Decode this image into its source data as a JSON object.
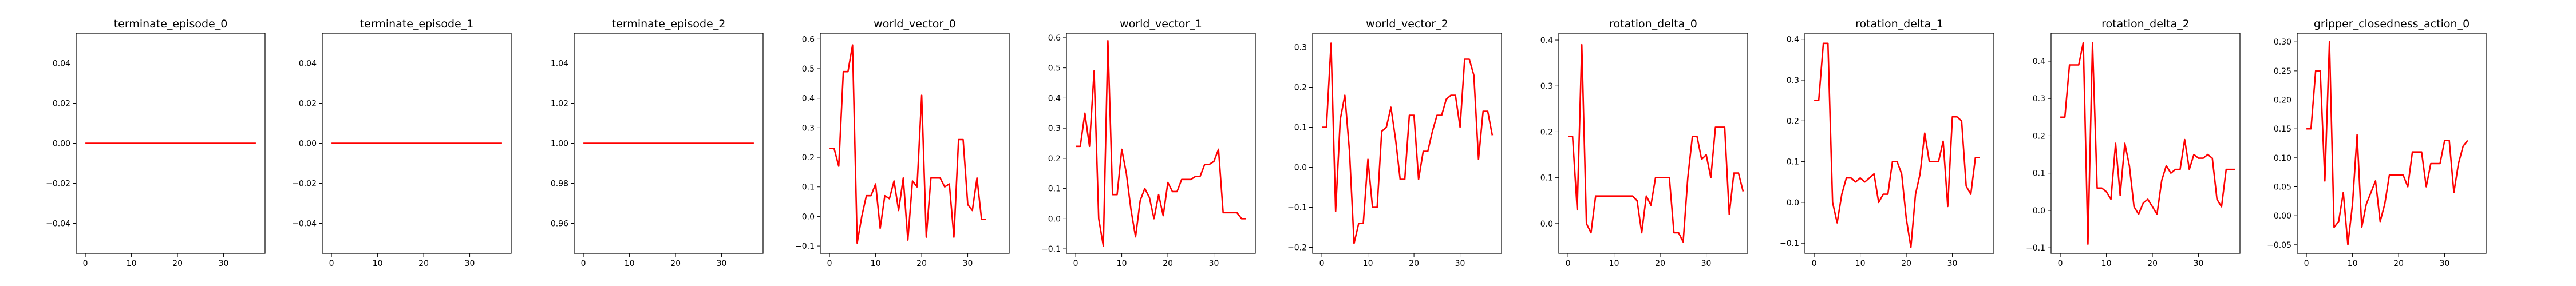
{
  "chart_data": [
    {
      "type": "line",
      "title": "terminate_episode_0",
      "xlim": [
        -2,
        39
      ],
      "ylim": [
        -0.055,
        0.055
      ],
      "xticks": [
        0,
        10,
        20,
        30
      ],
      "yticks": [
        -0.04,
        -0.02,
        0.0,
        0.02,
        0.04
      ],
      "ytick_labels": [
        "−0.04",
        "−0.02",
        "0.00",
        "0.02",
        "0.04"
      ],
      "color": "#ff0000",
      "y": [
        0,
        0,
        0,
        0,
        0,
        0,
        0,
        0,
        0,
        0,
        0,
        0,
        0,
        0,
        0,
        0,
        0,
        0,
        0,
        0,
        0,
        0,
        0,
        0,
        0,
        0,
        0,
        0,
        0,
        0,
        0,
        0,
        0,
        0,
        0,
        0,
        0,
        0
      ]
    },
    {
      "type": "line",
      "title": "terminate_episode_1",
      "xlim": [
        -2,
        39
      ],
      "ylim": [
        -0.055,
        0.055
      ],
      "xticks": [
        0,
        10,
        20,
        30
      ],
      "yticks": [
        -0.04,
        -0.02,
        0.0,
        0.02,
        0.04
      ],
      "ytick_labels": [
        "−0.04",
        "−0.02",
        "0.00",
        "0.02",
        "0.04"
      ],
      "color": "#ff0000",
      "y": [
        0,
        0,
        0,
        0,
        0,
        0,
        0,
        0,
        0,
        0,
        0,
        0,
        0,
        0,
        0,
        0,
        0,
        0,
        0,
        0,
        0,
        0,
        0,
        0,
        0,
        0,
        0,
        0,
        0,
        0,
        0,
        0,
        0,
        0,
        0,
        0,
        0,
        0
      ]
    },
    {
      "type": "line",
      "title": "terminate_episode_2",
      "xlim": [
        -2,
        39
      ],
      "ylim": [
        0.945,
        1.055
      ],
      "xticks": [
        0,
        10,
        20,
        30
      ],
      "yticks": [
        0.96,
        0.98,
        1.0,
        1.02,
        1.04
      ],
      "ytick_labels": [
        "0.96",
        "0.98",
        "1.00",
        "1.02",
        "1.04"
      ],
      "color": "#ff0000",
      "y": [
        1,
        1,
        1,
        1,
        1,
        1,
        1,
        1,
        1,
        1,
        1,
        1,
        1,
        1,
        1,
        1,
        1,
        1,
        1,
        1,
        1,
        1,
        1,
        1,
        1,
        1,
        1,
        1,
        1,
        1,
        1,
        1,
        1,
        1,
        1,
        1,
        1,
        1
      ]
    },
    {
      "type": "line",
      "title": "world_vector_0",
      "xlim": [
        -2,
        39
      ],
      "ylim": [
        -0.125,
        0.62
      ],
      "xticks": [
        0,
        10,
        20,
        30
      ],
      "yticks": [
        -0.1,
        0.0,
        0.1,
        0.2,
        0.3,
        0.4,
        0.5,
        0.6
      ],
      "ytick_labels": [
        "−0.1",
        "0.0",
        "0.1",
        "0.2",
        "0.3",
        "0.4",
        "0.5",
        "0.6"
      ],
      "color": "#ff0000",
      "y": [
        0.23,
        0.23,
        0.17,
        0.49,
        0.49,
        0.58,
        -0.09,
        0.0,
        0.07,
        0.07,
        0.11,
        -0.04,
        0.07,
        0.06,
        0.12,
        0.02,
        0.13,
        -0.08,
        0.12,
        0.1,
        0.41,
        -0.07,
        0.13,
        0.13,
        0.13,
        0.1,
        0.11,
        -0.07,
        0.26,
        0.26,
        0.04,
        0.02,
        0.13,
        -0.01,
        -0.01
      ]
    },
    {
      "type": "line",
      "title": "world_vector_1",
      "xlim": [
        -2,
        39
      ],
      "ylim": [
        -0.115,
        0.615
      ],
      "xticks": [
        0,
        10,
        20,
        30
      ],
      "yticks": [
        -0.1,
        0.0,
        0.1,
        0.2,
        0.3,
        0.4,
        0.5,
        0.6
      ],
      "ytick_labels": [
        "−0.1",
        "0.0",
        "0.1",
        "0.2",
        "0.3",
        "0.4",
        "0.5",
        "0.6"
      ],
      "color": "#ff0000",
      "y": [
        0.24,
        0.24,
        0.35,
        0.24,
        0.49,
        0.0,
        -0.09,
        0.59,
        0.08,
        0.08,
        0.23,
        0.15,
        0.03,
        -0.06,
        0.06,
        0.1,
        0.07,
        0.0,
        0.08,
        0.01,
        0.12,
        0.09,
        0.09,
        0.13,
        0.13,
        0.13,
        0.14,
        0.14,
        0.18,
        0.18,
        0.19,
        0.23,
        0.02,
        0.02,
        0.02,
        0.02,
        0.0,
        0.0
      ]
    },
    {
      "type": "line",
      "title": "world_vector_2",
      "xlim": [
        -2,
        39
      ],
      "ylim": [
        -0.215,
        0.335
      ],
      "xticks": [
        0,
        10,
        20,
        30
      ],
      "yticks": [
        -0.2,
        -0.1,
        0.0,
        0.1,
        0.2,
        0.3
      ],
      "ytick_labels": [
        "−0.2",
        "−0.1",
        "0.0",
        "0.1",
        "0.2",
        "0.3"
      ],
      "color": "#ff0000",
      "y": [
        0.1,
        0.1,
        0.31,
        -0.11,
        0.12,
        0.18,
        0.04,
        -0.19,
        -0.14,
        -0.14,
        0.02,
        -0.1,
        -0.1,
        0.09,
        0.1,
        0.15,
        0.07,
        -0.03,
        -0.03,
        0.13,
        0.13,
        -0.03,
        0.04,
        0.04,
        0.09,
        0.13,
        0.13,
        0.17,
        0.18,
        0.18,
        0.1,
        0.27,
        0.27,
        0.23,
        0.02,
        0.14,
        0.14,
        0.08
      ]
    },
    {
      "type": "line",
      "title": "rotation_delta_0",
      "xlim": [
        -2,
        39
      ],
      "ylim": [
        -0.065,
        0.415
      ],
      "xticks": [
        0,
        10,
        20,
        30
      ],
      "yticks": [
        0.0,
        0.1,
        0.2,
        0.3,
        0.4
      ],
      "ytick_labels": [
        "0.0",
        "0.1",
        "0.2",
        "0.3",
        "0.4"
      ],
      "color": "#ff0000",
      "y": [
        0.19,
        0.19,
        0.03,
        0.39,
        0.0,
        -0.02,
        0.06,
        0.06,
        0.06,
        0.06,
        0.06,
        0.06,
        0.06,
        0.06,
        0.06,
        0.05,
        -0.02,
        0.06,
        0.04,
        0.1,
        0.1,
        0.1,
        0.1,
        -0.02,
        -0.02,
        -0.04,
        0.1,
        0.19,
        0.19,
        0.14,
        0.15,
        0.1,
        0.21,
        0.21,
        0.21,
        0.02,
        0.11,
        0.11,
        0.07
      ]
    },
    {
      "type": "line",
      "title": "rotation_delta_1",
      "xlim": [
        -2,
        39
      ],
      "ylim": [
        -0.125,
        0.415
      ],
      "xticks": [
        0,
        10,
        20,
        30
      ],
      "yticks": [
        -0.1,
        0.0,
        0.1,
        0.2,
        0.3,
        0.4
      ],
      "ytick_labels": [
        "−0.1",
        "0.0",
        "0.1",
        "0.2",
        "0.3",
        "0.4"
      ],
      "color": "#ff0000",
      "y": [
        0.25,
        0.25,
        0.39,
        0.39,
        0.0,
        -0.05,
        0.02,
        0.06,
        0.06,
        0.05,
        0.06,
        0.05,
        0.06,
        0.07,
        0.0,
        0.02,
        0.02,
        0.1,
        0.1,
        0.07,
        -0.04,
        -0.11,
        0.02,
        0.07,
        0.17,
        0.1,
        0.1,
        0.1,
        0.15,
        -0.01,
        0.21,
        0.21,
        0.2,
        0.04,
        0.02,
        0.11,
        0.11
      ]
    },
    {
      "type": "line",
      "title": "rotation_delta_2",
      "xlim": [
        -2,
        39
      ],
      "ylim": [
        -0.115,
        0.475
      ],
      "xticks": [
        0,
        10,
        20,
        30
      ],
      "yticks": [
        -0.1,
        0.0,
        0.1,
        0.2,
        0.3,
        0.4
      ],
      "ytick_labels": [
        "−0.1",
        "0.0",
        "0.1",
        "0.2",
        "0.3",
        "0.4"
      ],
      "color": "#ff0000",
      "y": [
        0.25,
        0.25,
        0.39,
        0.39,
        0.39,
        0.45,
        -0.09,
        0.45,
        0.06,
        0.06,
        0.05,
        0.03,
        0.18,
        0.04,
        0.18,
        0.12,
        0.01,
        -0.01,
        0.02,
        0.03,
        0.01,
        -0.01,
        0.08,
        0.12,
        0.1,
        0.11,
        0.11,
        0.19,
        0.11,
        0.15,
        0.14,
        0.14,
        0.15,
        0.14,
        0.03,
        0.01,
        0.11,
        0.11,
        0.11
      ]
    },
    {
      "type": "line",
      "title": "gripper_closedness_action_0",
      "xlim": [
        -2,
        39
      ],
      "ylim": [
        -0.065,
        0.315
      ],
      "xticks": [
        0,
        10,
        20,
        30
      ],
      "yticks": [
        -0.05,
        0.0,
        0.05,
        0.1,
        0.15,
        0.2,
        0.25,
        0.3
      ],
      "ytick_labels": [
        "−0.05",
        "0.00",
        "0.05",
        "0.10",
        "0.15",
        "0.20",
        "0.25",
        "0.30"
      ],
      "color": "#ff0000",
      "y": [
        0.15,
        0.15,
        0.25,
        0.25,
        0.06,
        0.3,
        -0.02,
        -0.01,
        0.04,
        -0.05,
        0.02,
        0.14,
        -0.02,
        0.02,
        0.04,
        0.06,
        -0.01,
        0.02,
        0.07,
        0.07,
        0.07,
        0.07,
        0.05,
        0.11,
        0.11,
        0.11,
        0.05,
        0.09,
        0.09,
        0.09,
        0.13,
        0.13,
        0.04,
        0.09,
        0.12,
        0.13
      ]
    }
  ]
}
